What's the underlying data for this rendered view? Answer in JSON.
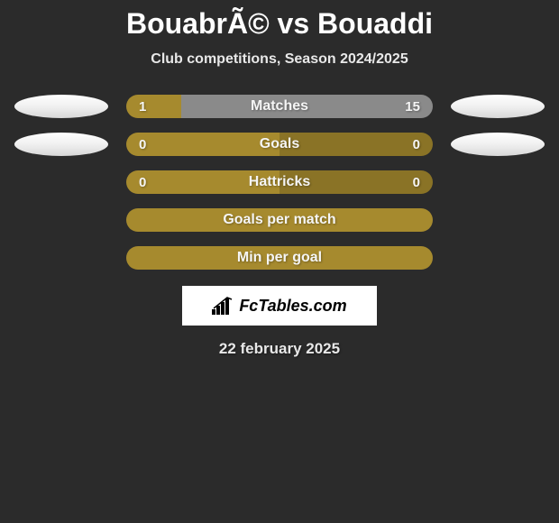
{
  "header": {
    "title": "BouabrÃ© vs Bouaddi",
    "subtitle": "Club competitions, Season 2024/2025"
  },
  "colors": {
    "background": "#2b2b2b",
    "bar_olive": "#a68a2e",
    "bar_olive_dark": "#8a7326",
    "bar_gray": "#8a8a8a",
    "text": "#f5f5f5",
    "avatar_bg": "#ffffff"
  },
  "stats": [
    {
      "label": "Matches",
      "left_value": "1",
      "right_value": "15",
      "left_pct": 18,
      "right_pct": 82,
      "left_color": "#a68a2e",
      "right_color": "#8a8a8a",
      "show_avatars": true
    },
    {
      "label": "Goals",
      "left_value": "0",
      "right_value": "0",
      "left_pct": 50,
      "right_pct": 50,
      "left_color": "#a68a2e",
      "right_color": "#8a7326",
      "show_avatars": true
    },
    {
      "label": "Hattricks",
      "left_value": "0",
      "right_value": "0",
      "left_pct": 50,
      "right_pct": 50,
      "left_color": "#a68a2e",
      "right_color": "#8a7326",
      "show_avatars": false
    },
    {
      "label": "Goals per match",
      "left_value": "",
      "right_value": "",
      "left_pct": 100,
      "right_pct": 0,
      "left_color": "#a68a2e",
      "right_color": "#a68a2e",
      "show_avatars": false,
      "full_bar": true
    },
    {
      "label": "Min per goal",
      "left_value": "",
      "right_value": "",
      "left_pct": 100,
      "right_pct": 0,
      "left_color": "#a68a2e",
      "right_color": "#a68a2e",
      "show_avatars": false,
      "full_bar": true
    }
  ],
  "footer": {
    "logo_text": "FcTables.com",
    "date": "22 february 2025"
  }
}
